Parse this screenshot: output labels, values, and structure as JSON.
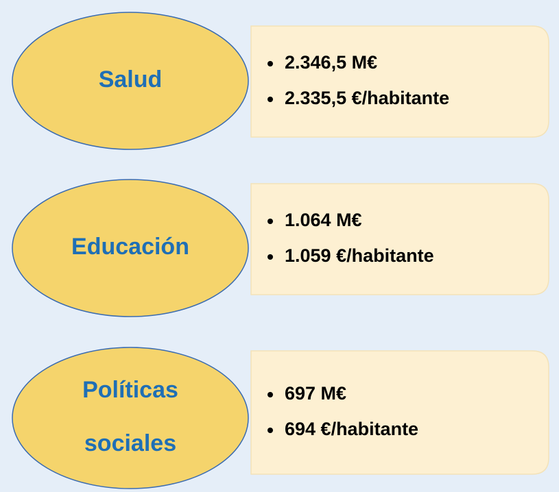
{
  "items": [
    {
      "label": [
        "Salud"
      ],
      "bullets": [
        "2.346,5 M€",
        "2.335,5 €/habitante"
      ]
    },
    {
      "label": [
        "Educación"
      ],
      "bullets": [
        "1.064 M€",
        "1.059 €/habitante"
      ]
    },
    {
      "label": [
        "Políticas",
        "sociales"
      ],
      "bullets": [
        "697 M€",
        "694 €/habitante"
      ]
    }
  ]
}
